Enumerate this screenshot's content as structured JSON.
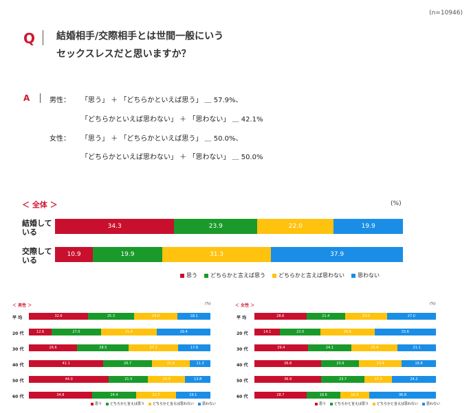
{
  "n_label": "(n=10946)",
  "q_mark": "Q",
  "q_line1": "結婚相手/交際相手とは世間一般にいう",
  "q_line2": "セックスレスだと思いますか？",
  "a_mark": "A",
  "answer": {
    "male_label": "男性：",
    "male_line1": "「思う」 ＋ 「どちらかといえば思う」 ＿ 57.9%、",
    "male_line2": "「どちらかといえば思わない」 ＋ 「思わない」 ＿ 42.1%",
    "female_label": "女性：",
    "female_line1": "「思う」 ＋ 「どちらかといえば思う」 ＿ 50.0%、",
    "female_line2": "「どちらかといえば思わない」 ＋ 「思わない」 ＿ 50.0%"
  },
  "colors": [
    "#c8102e",
    "#1a9a2a",
    "#ffc20e",
    "#1a8ee6"
  ],
  "legend": [
    "思う",
    "どちらかと言えば思う",
    "どちらかと言えば思わない",
    "思わない"
  ],
  "small_legend": [
    "思う",
    "どちらかと言えば思う",
    "どちらかと言えば思わない",
    "思わない"
  ],
  "chart_data": [
    {
      "type": "bar",
      "title": "＜ 全体 ＞",
      "unit": "(%)",
      "stacked": true,
      "orientation": "horizontal",
      "categories": [
        "結婚している",
        "交際している"
      ],
      "category_lines": [
        [
          "結婚して",
          "いる"
        ],
        [
          "交際して",
          "いる"
        ]
      ],
      "series": [
        {
          "name": "思う",
          "values": [
            34.3,
            10.9
          ]
        },
        {
          "name": "どちらかと言えば思う",
          "values": [
            23.9,
            19.9
          ]
        },
        {
          "name": "どちらかと言えば思わない",
          "values": [
            22.0,
            31.3
          ]
        },
        {
          "name": "思わない",
          "values": [
            19.9,
            37.9
          ]
        }
      ],
      "legend_position": "bottom-right"
    },
    {
      "type": "bar",
      "title": "＜ 男性 ＞",
      "unit": "(%)",
      "stacked": true,
      "orientation": "horizontal",
      "categories": [
        "平 均",
        "20 代",
        "30 代",
        "40 代",
        "50 代",
        "60 代"
      ],
      "series": [
        {
          "name": "思う",
          "values": [
            32.6,
            12.6,
            26.6,
            41.1,
            44.0,
            34.8
          ]
        },
        {
          "name": "どちらかと言えば思う",
          "values": [
            25.3,
            27.0,
            28.5,
            26.7,
            21.5,
            24.4
          ]
        },
        {
          "name": "どちらかと言えば思わない",
          "values": [
            24.0,
            31.0,
            27.1,
            21.0,
            20.5,
            21.7
          ]
        },
        {
          "name": "思わない",
          "values": [
            18.1,
            29.4,
            17.8,
            11.3,
            13.8,
            19.1
          ]
        }
      ],
      "legend_position": "bottom"
    },
    {
      "type": "bar",
      "title": "＜ 女性 ＞",
      "unit": "(%)",
      "stacked": true,
      "orientation": "horizontal",
      "categories": [
        "平 均",
        "20 代",
        "30 代",
        "40 代",
        "50 代",
        "60 代"
      ],
      "series": [
        {
          "name": "思う",
          "values": [
            28.6,
            14.1,
            29.4,
            36.8,
            36.9,
            28.7
          ]
        },
        {
          "name": "どちらかと言えば思う",
          "values": [
            21.4,
            22.0,
            24.1,
            20.9,
            23.7,
            18.6
          ]
        },
        {
          "name": "どちらかと言えば思わない",
          "values": [
            23.0,
            29.6,
            25.4,
            23.4,
            15.3,
            16.0
          ]
        },
        {
          "name": "思わない",
          "values": [
            27.0,
            33.6,
            21.1,
            18.8,
            24.2,
            36.8
          ]
        }
      ],
      "legend_position": "bottom"
    }
  ]
}
